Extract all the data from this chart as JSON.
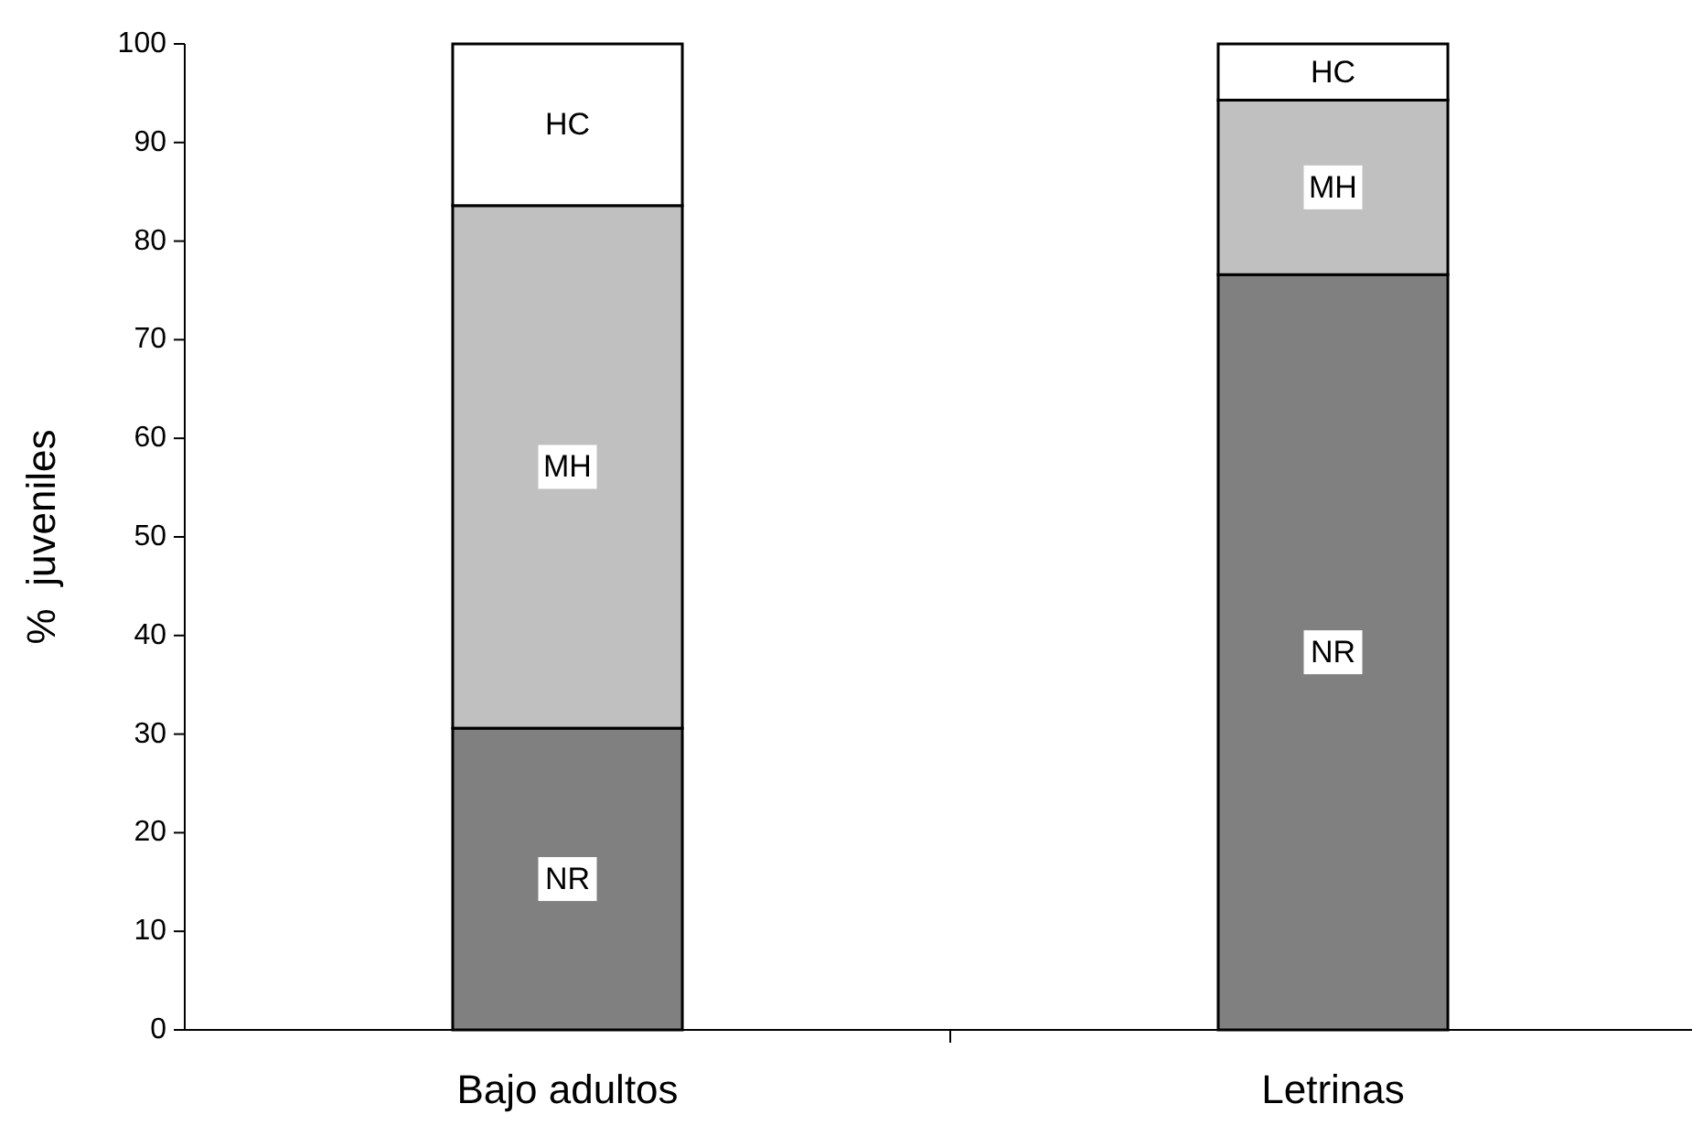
{
  "chart_data": {
    "type": "bar",
    "stacked": true,
    "ylabel": "%  juveniles",
    "categories": [
      "Bajo adultos",
      "Letrinas"
    ],
    "series": [
      {
        "name": "NR",
        "color": "#808080",
        "values": [
          30.6,
          76.6
        ]
      },
      {
        "name": "MH",
        "color": "#c0c0c0",
        "values": [
          53.0,
          17.7
        ]
      },
      {
        "name": "HC",
        "color": "#ffffff",
        "values": [
          16.4,
          5.7
        ]
      }
    ],
    "ylim": [
      0,
      100
    ],
    "yticks": [
      0,
      10,
      20,
      30,
      40,
      50,
      60,
      70,
      80,
      90,
      100
    ],
    "grid": false,
    "legend": false
  }
}
